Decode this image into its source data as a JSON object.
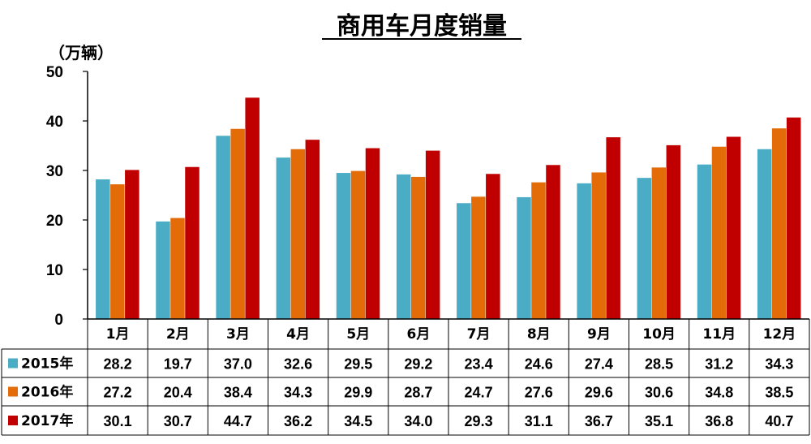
{
  "chart_data": {
    "type": "bar",
    "title": "商用车月度销量",
    "ylabel": "（万辆）",
    "ylim": [
      0,
      50
    ],
    "yticks": [
      0,
      10,
      20,
      30,
      40,
      50
    ],
    "categories": [
      "1月",
      "2月",
      "3月",
      "4月",
      "5月",
      "6月",
      "7月",
      "8月",
      "9月",
      "10月",
      "11月",
      "12月"
    ],
    "series": [
      {
        "name": "2015年",
        "color": "#4BACC6",
        "values": [
          28.2,
          19.7,
          37.0,
          32.6,
          29.5,
          29.2,
          23.4,
          24.6,
          27.4,
          28.5,
          31.2,
          34.3
        ]
      },
      {
        "name": "2016年",
        "color": "#E36C09",
        "values": [
          27.2,
          20.4,
          38.4,
          34.3,
          29.9,
          28.7,
          24.7,
          27.6,
          29.6,
          30.6,
          34.8,
          38.5
        ]
      },
      {
        "name": "2017年",
        "color": "#C00000",
        "values": [
          30.1,
          30.7,
          44.7,
          36.2,
          34.5,
          34.0,
          29.3,
          31.1,
          36.7,
          35.1,
          36.8,
          40.7
        ]
      }
    ],
    "table_cells": [
      [
        "28.2",
        "19.7",
        "37.0",
        "32.6",
        "29.5",
        "29.2",
        "23.4",
        "24.6",
        "27.4",
        "28.5",
        "31.2",
        "34.3"
      ],
      [
        "27.2",
        "20.4",
        "38.4",
        "34.3",
        "29.9",
        "28.7",
        "24.7",
        "27.6",
        "29.6",
        "30.6",
        "34.8",
        "38.5"
      ],
      [
        "30.1",
        "30.7",
        "44.7",
        "36.2",
        "34.5",
        "34.0",
        "29.3",
        "31.1",
        "36.7",
        "35.1",
        "36.8",
        "40.7"
      ]
    ],
    "grid": false,
    "legend": "data-table"
  }
}
